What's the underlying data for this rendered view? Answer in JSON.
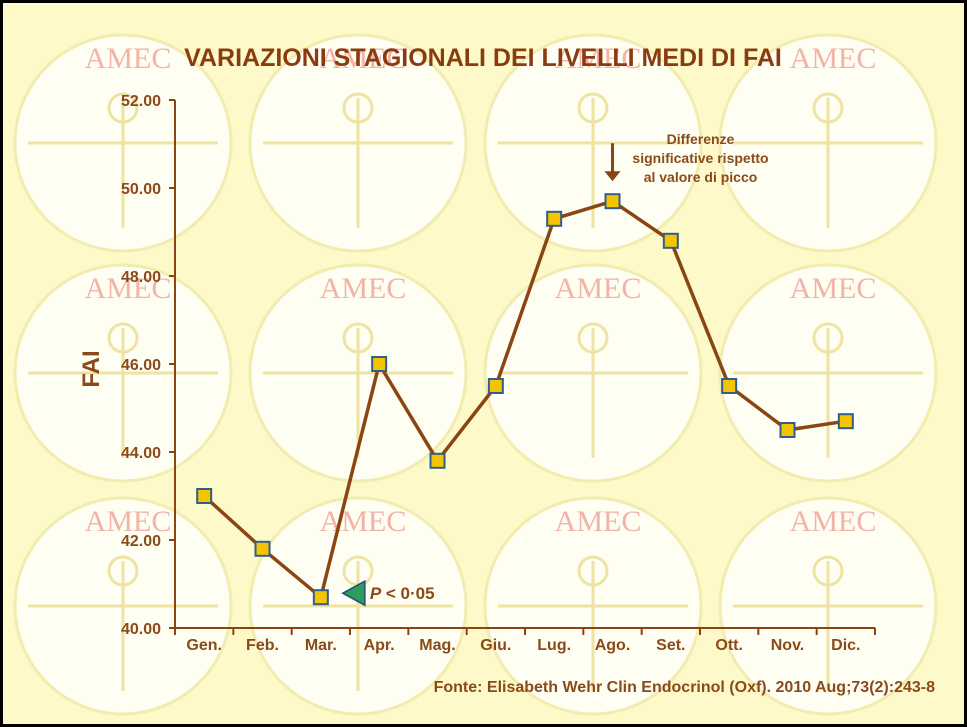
{
  "chart_data": {
    "type": "line",
    "title": "VARIAZIONI STAGIONALI DEI LIVELLI MEDI DI FAI",
    "ylabel": "FAI",
    "xlabel": "",
    "ylim": [
      40,
      52
    ],
    "yticks": [
      "40.00",
      "42.00",
      "44.00",
      "46.00",
      "48.00",
      "50.00",
      "52.00"
    ],
    "categories": [
      "Gen.",
      "Feb.",
      "Mar.",
      "Apr.",
      "Mag.",
      "Giu.",
      "Lug.",
      "Ago.",
      "Set.",
      "Ott.",
      "Nov.",
      "Dic."
    ],
    "series": [
      {
        "values": [
          43.0,
          41.8,
          40.7,
          46.0,
          43.8,
          45.5,
          49.3,
          49.7,
          48.8,
          45.5,
          44.5,
          44.7
        ]
      }
    ],
    "grid": false,
    "line_color": "#8a4512",
    "marker_color": "#f5c400",
    "marker_edge": "#2f5f8f",
    "annotation": {
      "lines": [
        "Differenze",
        "significative rispetto",
        "al valore di picco"
      ],
      "target_category": "Ago."
    },
    "pvalue": {
      "italic_part": "P",
      "rest": " < 0·05",
      "target_category": "Mar."
    },
    "source": "Fonte: Elisabeth Wehr Clin Endocrinol (Oxf). 2010 Aug;73(2):243-8",
    "watermark": "AMEC"
  }
}
